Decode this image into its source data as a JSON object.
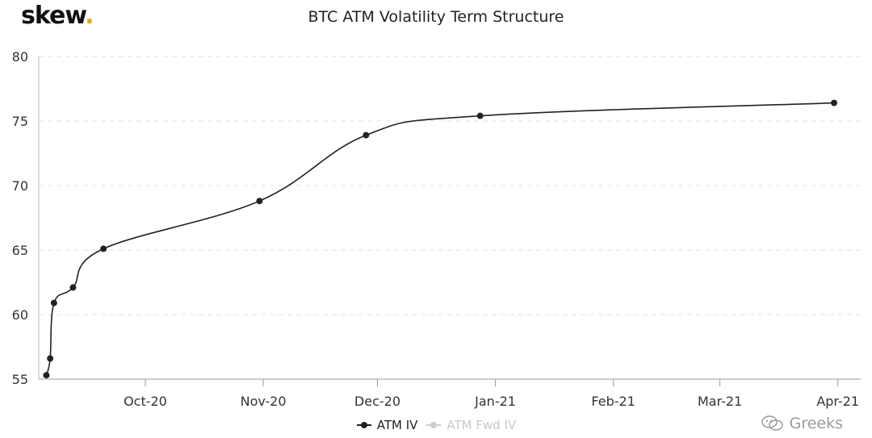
{
  "logo": {
    "text": "skew",
    "dot": "."
  },
  "watermark": {
    "text": "Greeks"
  },
  "chart_data": {
    "type": "line",
    "title": "BTC ATM Volatility Term Structure",
    "xlabel": "",
    "ylabel": "",
    "x_axis": "date",
    "xlim": [
      "2020-09-03",
      "2021-04-07"
    ],
    "ylim": [
      55,
      80
    ],
    "yticks": [
      55,
      60,
      65,
      70,
      75,
      80
    ],
    "xticks": [
      {
        "date": "2020-10-01",
        "label": "Oct-20"
      },
      {
        "date": "2020-11-01",
        "label": "Nov-20"
      },
      {
        "date": "2020-12-01",
        "label": "Dec-20"
      },
      {
        "date": "2021-01-01",
        "label": "Jan-21"
      },
      {
        "date": "2021-02-01",
        "label": "Feb-21"
      },
      {
        "date": "2021-03-01",
        "label": "Mar-21"
      },
      {
        "date": "2021-04-01",
        "label": "Apr-21"
      }
    ],
    "grid": "horizontal-dashed",
    "legend_position": "bottom-center",
    "series": [
      {
        "name": "ATM IV",
        "color": "#222222",
        "visible": true,
        "x": [
          "2020-09-05",
          "2020-09-06",
          "2020-09-07",
          "2020-09-12",
          "2020-09-20",
          "2020-10-31",
          "2020-11-28",
          "2020-12-28",
          "2021-03-31"
        ],
        "y": [
          55.3,
          56.6,
          60.9,
          62.1,
          65.1,
          68.8,
          73.9,
          75.4,
          76.4
        ]
      },
      {
        "name": "ATM Fwd IV",
        "color": "#cccccc",
        "visible": false,
        "x": [],
        "y": []
      }
    ]
  }
}
